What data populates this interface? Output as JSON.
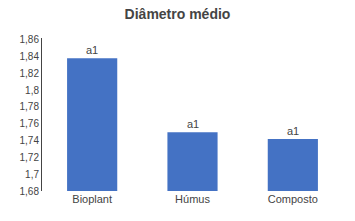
{
  "chart_data": {
    "type": "bar",
    "title": "Diâmetro médio",
    "categories": [
      "Bioplant",
      "Húmus",
      "Composto"
    ],
    "values": [
      1.838,
      1.75,
      1.742
    ],
    "annotations": [
      "a1",
      "a1",
      "a1"
    ],
    "color": "#4472C4",
    "ylim": [
      1.68,
      1.862
    ],
    "yticks": [
      {
        "value": 1.68,
        "label": "1,68"
      },
      {
        "value": 1.7,
        "label": "1,7"
      },
      {
        "value": 1.72,
        "label": "1,72"
      },
      {
        "value": 1.74,
        "label": "1,74"
      },
      {
        "value": 1.76,
        "label": "1,76"
      },
      {
        "value": 1.78,
        "label": "1,78"
      },
      {
        "value": 1.8,
        "label": "1,8"
      },
      {
        "value": 1.82,
        "label": "1,82"
      },
      {
        "value": 1.84,
        "label": "1,84"
      },
      {
        "value": 1.86,
        "label": "1,86"
      }
    ],
    "grid": false
  }
}
